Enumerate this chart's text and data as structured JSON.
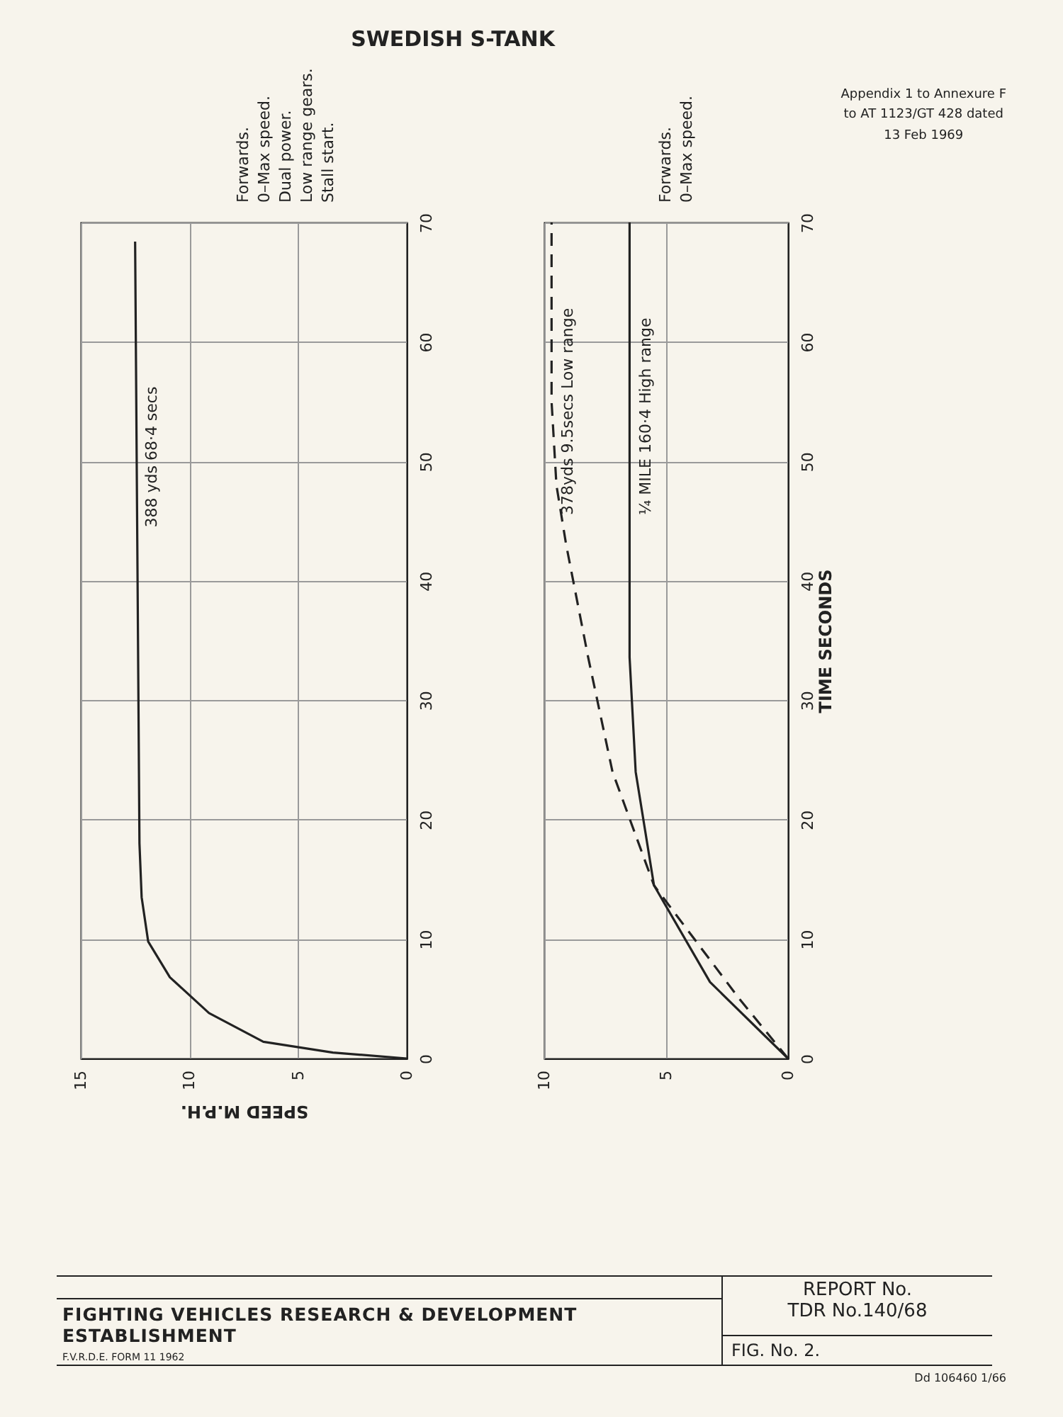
{
  "chart_data": [
    {
      "type": "line",
      "title": "SWEDISH S-TANK",
      "xlabel": "SPEED M.P.H.",
      "xlim": [
        15,
        0
      ],
      "xticks": [
        15,
        10,
        5,
        0
      ],
      "ylim": [
        0,
        70
      ],
      "yticks": [
        0,
        10,
        20,
        30,
        40,
        50,
        60,
        70
      ],
      "grid": true,
      "annotations": [
        "Forwards.\n0–Max speed.\nDual power.\nLow range gears.\nStall start."
      ],
      "series": [
        {
          "name": "388 yds  68·4 secs",
          "color": "#222222",
          "line_style": "solid",
          "x": [
            0,
            3.4,
            6.6,
            9.1,
            10.9,
            11.9,
            12.2,
            12.3,
            12.5
          ],
          "values": [
            0,
            0.5,
            1.4,
            3.8,
            6.8,
            9.8,
            13.5,
            18,
            68.4
          ]
        }
      ]
    },
    {
      "type": "line",
      "ylabel": "TIME SECONDS",
      "xlim": [
        10,
        0
      ],
      "xticks": [
        10,
        5,
        0
      ],
      "ylim": [
        0,
        70
      ],
      "yticks": [
        0,
        10,
        20,
        30,
        40,
        50,
        60,
        70
      ],
      "grid": true,
      "annotations": [
        "Forwards.\n0–Max speed.",
        "Appendix 1 to Annexure F\nto AT 1123/GT 428  dated\n13 Feb 1969",
        "REPORT No.\nTDR No.140/68",
        "FIGHTING VEHICLES RESEARCH & DEVELOPMENT ESTABLISHMENT",
        "FIG. No. 2.",
        "F.V.R.D.E. FORM 11 1962",
        "Dd 106460  1/66"
      ],
      "series": [
        {
          "name": "378yds 9.5secs  Low range",
          "color": "#222222",
          "line_style": "dashed",
          "x": [
            0,
            2.0,
            5.5,
            7.2,
            8.2,
            9.1,
            9.5,
            9.7,
            9.7
          ],
          "values": [
            0,
            5,
            14.5,
            24,
            33.6,
            43,
            48,
            55,
            70
          ]
        },
        {
          "name": "¼ MILE  160·4  High range",
          "color": "#222222",
          "line_style": "solid",
          "x": [
            0,
            3.2,
            5.5,
            6.25,
            6.5,
            6.5
          ],
          "values": [
            0,
            6.4,
            14.5,
            24,
            33.6,
            70
          ]
        }
      ]
    }
  ]
}
